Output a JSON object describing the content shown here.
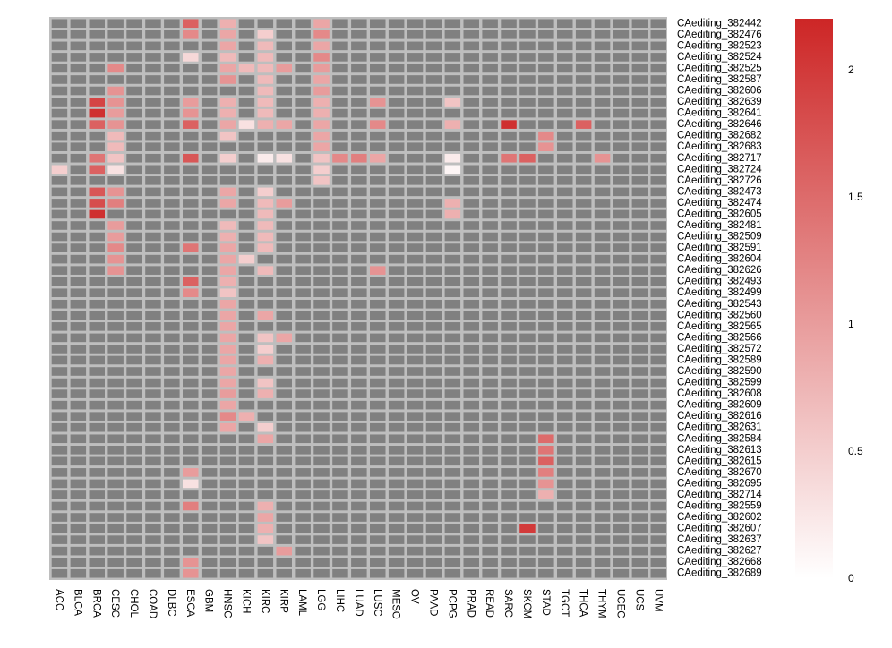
{
  "chart_data": {
    "type": "heatmap",
    "title": "",
    "xlabel": "",
    "ylabel": "",
    "columns": [
      "ACC",
      "BLCA",
      "BRCA",
      "CESC",
      "CHOL",
      "COAD",
      "DLBC",
      "ESCA",
      "GBM",
      "HNSC",
      "KICH",
      "KIRC",
      "KIRP",
      "LAML",
      "LGG",
      "LIHC",
      "LUAD",
      "LUSC",
      "MESO",
      "OV",
      "PAAD",
      "PCPG",
      "PRAD",
      "READ",
      "SARC",
      "SKCM",
      "STAD",
      "TGCT",
      "THCA",
      "THYM",
      "UCEC",
      "UCS",
      "UVM"
    ],
    "rows": [
      "CAediting_382442",
      "CAediting_382476",
      "CAediting_382523",
      "CAediting_382524",
      "CAediting_382525",
      "CAediting_382587",
      "CAediting_382606",
      "CAediting_382639",
      "CAediting_382641",
      "CAediting_382646",
      "CAediting_382682",
      "CAediting_382683",
      "CAediting_382717",
      "CAediting_382724",
      "CAediting_382726",
      "CAediting_382473",
      "CAediting_382474",
      "CAediting_382605",
      "CAediting_382481",
      "CAediting_382509",
      "CAediting_382591",
      "CAediting_382604",
      "CAediting_382626",
      "CAediting_382493",
      "CAediting_382499",
      "CAediting_382543",
      "CAediting_382560",
      "CAediting_382565",
      "CAediting_382566",
      "CAediting_382572",
      "CAediting_382589",
      "CAediting_382590",
      "CAediting_382599",
      "CAediting_382608",
      "CAediting_382609",
      "CAediting_382616",
      "CAediting_382631",
      "CAediting_382584",
      "CAediting_382613",
      "CAediting_382615",
      "CAediting_382670",
      "CAediting_382695",
      "CAediting_382714",
      "CAediting_382559",
      "CAediting_382602",
      "CAediting_382607",
      "CAediting_382637",
      "CAediting_382627",
      "CAediting_382668",
      "CAediting_382689"
    ],
    "na_color": "#808080",
    "color_scale": {
      "min": 0,
      "max": 2.2,
      "low_color": "#ffffff",
      "high_color": "#cd2626"
    },
    "legend": {
      "position": "right",
      "ticks": [
        0,
        0.5,
        1,
        1.5,
        2
      ],
      "tick_labels": [
        "0",
        "0.5",
        "1",
        "1.5",
        "2"
      ]
    },
    "cells": [
      {
        "row": "CAediting_382442",
        "col": "ESCA",
        "value": 1.6
      },
      {
        "row": "CAediting_382442",
        "col": "HNSC",
        "value": 0.8
      },
      {
        "row": "CAediting_382442",
        "col": "LGG",
        "value": 0.9
      },
      {
        "row": "CAediting_382476",
        "col": "ESCA",
        "value": 1.2
      },
      {
        "row": "CAediting_382476",
        "col": "HNSC",
        "value": 0.9
      },
      {
        "row": "CAediting_382476",
        "col": "KIRC",
        "value": 0.5
      },
      {
        "row": "CAediting_382476",
        "col": "LGG",
        "value": 1.2
      },
      {
        "row": "CAediting_382523",
        "col": "HNSC",
        "value": 0.9
      },
      {
        "row": "CAediting_382523",
        "col": "KIRC",
        "value": 0.7
      },
      {
        "row": "CAediting_382523",
        "col": "LGG",
        "value": 0.9
      },
      {
        "row": "CAediting_382524",
        "col": "ESCA",
        "value": 0.4
      },
      {
        "row": "CAediting_382524",
        "col": "HNSC",
        "value": 0.7
      },
      {
        "row": "CAediting_382524",
        "col": "KIRC",
        "value": 0.7
      },
      {
        "row": "CAediting_382524",
        "col": "LGG",
        "value": 1.2
      },
      {
        "row": "CAediting_382525",
        "col": "CESC",
        "value": 1.2
      },
      {
        "row": "CAediting_382525",
        "col": "HNSC",
        "value": 0.9
      },
      {
        "row": "CAediting_382525",
        "col": "KICH",
        "value": 0.7
      },
      {
        "row": "CAediting_382525",
        "col": "KIRC",
        "value": 0.7
      },
      {
        "row": "CAediting_382525",
        "col": "KIRP",
        "value": 1.0
      },
      {
        "row": "CAediting_382525",
        "col": "LGG",
        "value": 1.0
      },
      {
        "row": "CAediting_382587",
        "col": "HNSC",
        "value": 1.1
      },
      {
        "row": "CAediting_382587",
        "col": "KIRC",
        "value": 0.7
      },
      {
        "row": "CAediting_382587",
        "col": "LGG",
        "value": 0.9
      },
      {
        "row": "CAediting_382606",
        "col": "CESC",
        "value": 1.1
      },
      {
        "row": "CAediting_382606",
        "col": "KIRC",
        "value": 0.7
      },
      {
        "row": "CAediting_382606",
        "col": "LGG",
        "value": 1.0
      },
      {
        "row": "CAediting_382639",
        "col": "BRCA",
        "value": 1.9
      },
      {
        "row": "CAediting_382639",
        "col": "CESC",
        "value": 1.1
      },
      {
        "row": "CAediting_382639",
        "col": "ESCA",
        "value": 1.0
      },
      {
        "row": "CAediting_382639",
        "col": "HNSC",
        "value": 0.8
      },
      {
        "row": "CAediting_382639",
        "col": "KIRC",
        "value": 0.7
      },
      {
        "row": "CAediting_382639",
        "col": "LGG",
        "value": 0.8
      },
      {
        "row": "CAediting_382639",
        "col": "LUSC",
        "value": 1.1
      },
      {
        "row": "CAediting_382639",
        "col": "PCPG",
        "value": 0.6
      },
      {
        "row": "CAediting_382641",
        "col": "BRCA",
        "value": 2.1
      },
      {
        "row": "CAediting_382641",
        "col": "CESC",
        "value": 1.0
      },
      {
        "row": "CAediting_382641",
        "col": "ESCA",
        "value": 1.1
      },
      {
        "row": "CAediting_382641",
        "col": "HNSC",
        "value": 0.8
      },
      {
        "row": "CAediting_382641",
        "col": "KIRC",
        "value": 0.7
      },
      {
        "row": "CAediting_382641",
        "col": "LGG",
        "value": 0.8
      },
      {
        "row": "CAediting_382646",
        "col": "BRCA",
        "value": 1.6
      },
      {
        "row": "CAediting_382646",
        "col": "CESC",
        "value": 1.1
      },
      {
        "row": "CAediting_382646",
        "col": "ESCA",
        "value": 1.6
      },
      {
        "row": "CAediting_382646",
        "col": "HNSC",
        "value": 0.9
      },
      {
        "row": "CAediting_382646",
        "col": "KICH",
        "value": 0.3
      },
      {
        "row": "CAediting_382646",
        "col": "KIRC",
        "value": 0.8
      },
      {
        "row": "CAediting_382646",
        "col": "KIRP",
        "value": 0.9
      },
      {
        "row": "CAediting_382646",
        "col": "LGG",
        "value": 0.9
      },
      {
        "row": "CAediting_382646",
        "col": "LUSC",
        "value": 1.2
      },
      {
        "row": "CAediting_382646",
        "col": "PCPG",
        "value": 0.8
      },
      {
        "row": "CAediting_382646",
        "col": "SARC",
        "value": 2.1
      },
      {
        "row": "CAediting_382646",
        "col": "THCA",
        "value": 1.6
      },
      {
        "row": "CAediting_382682",
        "col": "CESC",
        "value": 0.7
      },
      {
        "row": "CAediting_382682",
        "col": "HNSC",
        "value": 0.6
      },
      {
        "row": "CAediting_382682",
        "col": "LGG",
        "value": 0.9
      },
      {
        "row": "CAediting_382682",
        "col": "STAD",
        "value": 1.2
      },
      {
        "row": "CAediting_382683",
        "col": "CESC",
        "value": 0.7
      },
      {
        "row": "CAediting_382683",
        "col": "LGG",
        "value": 0.9
      },
      {
        "row": "CAediting_382683",
        "col": "STAD",
        "value": 1.1
      },
      {
        "row": "CAediting_382717",
        "col": "BRCA",
        "value": 1.4
      },
      {
        "row": "CAediting_382717",
        "col": "CESC",
        "value": 0.6
      },
      {
        "row": "CAediting_382717",
        "col": "ESCA",
        "value": 1.7
      },
      {
        "row": "CAediting_382717",
        "col": "HNSC",
        "value": 0.5
      },
      {
        "row": "CAediting_382717",
        "col": "KIRC",
        "value": 0.2
      },
      {
        "row": "CAediting_382717",
        "col": "KIRP",
        "value": 0.3
      },
      {
        "row": "CAediting_382717",
        "col": "LGG",
        "value": 0.6
      },
      {
        "row": "CAediting_382717",
        "col": "LIHC",
        "value": 1.2
      },
      {
        "row": "CAediting_382717",
        "col": "LUAD",
        "value": 1.3
      },
      {
        "row": "CAediting_382717",
        "col": "LUSC",
        "value": 0.9
      },
      {
        "row": "CAediting_382717",
        "col": "PCPG",
        "value": 0.2
      },
      {
        "row": "CAediting_382717",
        "col": "SARC",
        "value": 1.4
      },
      {
        "row": "CAediting_382717",
        "col": "SKCM",
        "value": 1.6
      },
      {
        "row": "CAediting_382717",
        "col": "THYM",
        "value": 1.1
      },
      {
        "row": "CAediting_382724",
        "col": "ACC",
        "value": 0.5
      },
      {
        "row": "CAediting_382724",
        "col": "BRCA",
        "value": 1.6
      },
      {
        "row": "CAediting_382724",
        "col": "CESC",
        "value": 0.3
      },
      {
        "row": "CAediting_382724",
        "col": "LGG",
        "value": 0.5
      },
      {
        "row": "CAediting_382724",
        "col": "PCPG",
        "value": 0.1
      },
      {
        "row": "CAediting_382726",
        "col": "LGG",
        "value": 0.6
      },
      {
        "row": "CAediting_382473",
        "col": "BRCA",
        "value": 1.7
      },
      {
        "row": "CAediting_382473",
        "col": "CESC",
        "value": 1.1
      },
      {
        "row": "CAediting_382473",
        "col": "HNSC",
        "value": 0.9
      },
      {
        "row": "CAediting_382473",
        "col": "KIRC",
        "value": 0.5
      },
      {
        "row": "CAediting_382474",
        "col": "BRCA",
        "value": 1.8
      },
      {
        "row": "CAediting_382474",
        "col": "CESC",
        "value": 1.3
      },
      {
        "row": "CAediting_382474",
        "col": "HNSC",
        "value": 0.9
      },
      {
        "row": "CAediting_382474",
        "col": "KIRC",
        "value": 0.7
      },
      {
        "row": "CAediting_382474",
        "col": "KIRP",
        "value": 1.0
      },
      {
        "row": "CAediting_382474",
        "col": "PCPG",
        "value": 0.8
      },
      {
        "row": "CAediting_382605",
        "col": "BRCA",
        "value": 2.1
      },
      {
        "row": "CAediting_382605",
        "col": "KIRC",
        "value": 0.7
      },
      {
        "row": "CAediting_382605",
        "col": "PCPG",
        "value": 0.8
      },
      {
        "row": "CAediting_382481",
        "col": "CESC",
        "value": 1.0
      },
      {
        "row": "CAediting_382481",
        "col": "HNSC",
        "value": 0.7
      },
      {
        "row": "CAediting_382481",
        "col": "KIRC",
        "value": 0.7
      },
      {
        "row": "CAediting_382509",
        "col": "CESC",
        "value": 1.0
      },
      {
        "row": "CAediting_382509",
        "col": "HNSC",
        "value": 0.8
      },
      {
        "row": "CAediting_382509",
        "col": "KIRC",
        "value": 0.7
      },
      {
        "row": "CAediting_382591",
        "col": "CESC",
        "value": 1.2
      },
      {
        "row": "CAediting_382591",
        "col": "ESCA",
        "value": 1.4
      },
      {
        "row": "CAediting_382591",
        "col": "HNSC",
        "value": 0.9
      },
      {
        "row": "CAediting_382591",
        "col": "KIRC",
        "value": 0.7
      },
      {
        "row": "CAediting_382604",
        "col": "CESC",
        "value": 1.1
      },
      {
        "row": "CAediting_382604",
        "col": "HNSC",
        "value": 0.9
      },
      {
        "row": "CAediting_382604",
        "col": "KICH",
        "value": 0.5
      },
      {
        "row": "CAediting_382626",
        "col": "CESC",
        "value": 1.1
      },
      {
        "row": "CAediting_382626",
        "col": "HNSC",
        "value": 0.9
      },
      {
        "row": "CAediting_382626",
        "col": "KIRC",
        "value": 0.7
      },
      {
        "row": "CAediting_382626",
        "col": "LUSC",
        "value": 1.1
      },
      {
        "row": "CAediting_382493",
        "col": "ESCA",
        "value": 1.6
      },
      {
        "row": "CAediting_382493",
        "col": "HNSC",
        "value": 0.8
      },
      {
        "row": "CAediting_382499",
        "col": "ESCA",
        "value": 1.2
      },
      {
        "row": "CAediting_382499",
        "col": "HNSC",
        "value": 0.6
      },
      {
        "row": "CAediting_382543",
        "col": "HNSC",
        "value": 0.9
      },
      {
        "row": "CAediting_382560",
        "col": "HNSC",
        "value": 0.9
      },
      {
        "row": "CAediting_382560",
        "col": "KIRC",
        "value": 0.9
      },
      {
        "row": "CAediting_382565",
        "col": "HNSC",
        "value": 0.9
      },
      {
        "row": "CAediting_382566",
        "col": "HNSC",
        "value": 0.9
      },
      {
        "row": "CAediting_382566",
        "col": "KIRC",
        "value": 0.6
      },
      {
        "row": "CAediting_382566",
        "col": "KIRP",
        "value": 0.9
      },
      {
        "row": "CAediting_382572",
        "col": "HNSC",
        "value": 0.9
      },
      {
        "row": "CAediting_382572",
        "col": "KIRC",
        "value": 0.5
      },
      {
        "row": "CAediting_382589",
        "col": "HNSC",
        "value": 0.9
      },
      {
        "row": "CAediting_382589",
        "col": "KIRC",
        "value": 0.8
      },
      {
        "row": "CAediting_382590",
        "col": "HNSC",
        "value": 0.9
      },
      {
        "row": "CAediting_382599",
        "col": "HNSC",
        "value": 0.9
      },
      {
        "row": "CAediting_382599",
        "col": "KIRC",
        "value": 0.6
      },
      {
        "row": "CAediting_382608",
        "col": "HNSC",
        "value": 1.0
      },
      {
        "row": "CAediting_382608",
        "col": "KIRC",
        "value": 0.8
      },
      {
        "row": "CAediting_382609",
        "col": "HNSC",
        "value": 0.9
      },
      {
        "row": "CAediting_382616",
        "col": "HNSC",
        "value": 1.2
      },
      {
        "row": "CAediting_382616",
        "col": "KICH",
        "value": 0.8
      },
      {
        "row": "CAediting_382631",
        "col": "HNSC",
        "value": 0.9
      },
      {
        "row": "CAediting_382631",
        "col": "KIRC",
        "value": 0.5
      },
      {
        "row": "CAediting_382584",
        "col": "KIRC",
        "value": 0.9
      },
      {
        "row": "CAediting_382584",
        "col": "STAD",
        "value": 1.5
      },
      {
        "row": "CAediting_382613",
        "col": "STAD",
        "value": 1.4
      },
      {
        "row": "CAediting_382615",
        "col": "STAD",
        "value": 1.6
      },
      {
        "row": "CAediting_382670",
        "col": "ESCA",
        "value": 1.0
      },
      {
        "row": "CAediting_382670",
        "col": "STAD",
        "value": 1.3
      },
      {
        "row": "CAediting_382695",
        "col": "ESCA",
        "value": 0.3
      },
      {
        "row": "CAediting_382695",
        "col": "STAD",
        "value": 1.1
      },
      {
        "row": "CAediting_382714",
        "col": "STAD",
        "value": 0.8
      },
      {
        "row": "CAediting_382559",
        "col": "ESCA",
        "value": 1.3
      },
      {
        "row": "CAediting_382559",
        "col": "KIRC",
        "value": 0.8
      },
      {
        "row": "CAediting_382602",
        "col": "KIRC",
        "value": 0.9
      },
      {
        "row": "CAediting_382607",
        "col": "KIRC",
        "value": 0.8
      },
      {
        "row": "CAediting_382607",
        "col": "SKCM",
        "value": 2.0
      },
      {
        "row": "CAediting_382637",
        "col": "KIRC",
        "value": 0.6
      },
      {
        "row": "CAediting_382627",
        "col": "KIRP",
        "value": 1.0
      },
      {
        "row": "CAediting_382668",
        "col": "ESCA",
        "value": 1.1
      },
      {
        "row": "CAediting_382689",
        "col": "ESCA",
        "value": 1.1
      }
    ]
  }
}
